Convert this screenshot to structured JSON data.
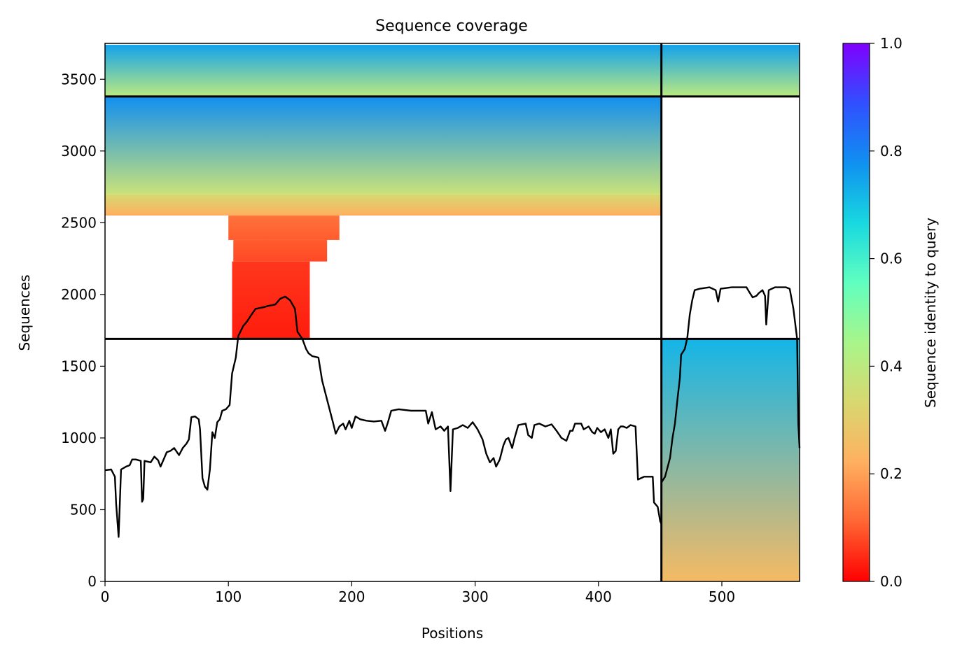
{
  "chart_data": {
    "type": "heatmap",
    "title": "Sequence coverage",
    "xlabel": "Positions",
    "ylabel": "Sequences",
    "xlim": [
      0,
      563
    ],
    "ylim": [
      0,
      3750
    ],
    "x_ticks": [
      {
        "value": 0,
        "label": "0"
      },
      {
        "value": 100,
        "label": "100"
      },
      {
        "value": 200,
        "label": "200"
      },
      {
        "value": 300,
        "label": "300"
      },
      {
        "value": 400,
        "label": "400"
      },
      {
        "value": 500,
        "label": "500"
      }
    ],
    "y_ticks": [
      {
        "value": 0,
        "label": "0"
      },
      {
        "value": 500,
        "label": "500"
      },
      {
        "value": 1000,
        "label": "1000"
      },
      {
        "value": 1500,
        "label": "1500"
      },
      {
        "value": 2000,
        "label": "2000"
      },
      {
        "value": 2500,
        "label": "2500"
      },
      {
        "value": 3000,
        "label": "3000"
      },
      {
        "value": 3500,
        "label": "3500"
      }
    ],
    "colorbar": {
      "label": "Sequence identity to query",
      "range": [
        0,
        1
      ],
      "colormap": "rainbow_r",
      "ticks": [
        {
          "value": 0.0,
          "label": "0.0"
        },
        {
          "value": 0.2,
          "label": "0.2"
        },
        {
          "value": 0.4,
          "label": "0.4"
        },
        {
          "value": 0.6,
          "label": "0.6"
        },
        {
          "value": 0.8,
          "label": "0.8"
        },
        {
          "value": 1.0,
          "label": "1.0"
        }
      ],
      "stops": [
        "#ff0000",
        "#ff6633",
        "#ffb060",
        "#d8d870",
        "#a8f58a",
        "#60ffc0",
        "#18d8e0",
        "#1090f0",
        "#3050ff",
        "#8000ff"
      ]
    },
    "chain_boundary_x": 451,
    "block_boundaries_y": [
      1690,
      3380
    ],
    "blocks": [
      {
        "x": [
          0,
          451
        ],
        "y": [
          3380,
          3740
        ],
        "identity_top": 0.75,
        "identity_bottom": 0.4
      },
      {
        "x": [
          451,
          563
        ],
        "y": [
          3380,
          3740
        ],
        "identity_top": 0.75,
        "identity_bottom": 0.4
      },
      {
        "x": [
          0,
          451
        ],
        "y": [
          2700,
          3380
        ],
        "identity_top": 0.78,
        "identity_bottom": 0.37
      },
      {
        "x": [
          0,
          451
        ],
        "y": [
          2550,
          2700
        ],
        "identity_top": 0.34,
        "identity_bottom": 0.22
      },
      {
        "x": [
          100,
          190
        ],
        "y": [
          2380,
          2550
        ],
        "identity_top": 0.13,
        "identity_bottom": 0.1
      },
      {
        "x": [
          104,
          180
        ],
        "y": [
          2230,
          2380
        ],
        "identity_top": 0.1,
        "identity_bottom": 0.08
      },
      {
        "x": [
          103,
          166
        ],
        "y": [
          1690,
          2230
        ],
        "identity_top": 0.06,
        "identity_bottom": 0.03
      },
      {
        "x": [
          451,
          563
        ],
        "y": [
          0,
          1690
        ],
        "identity_top": 0.72,
        "identity_bottom": 0.25
      }
    ],
    "series": [
      {
        "type": "line",
        "color": "#000000",
        "points": [
          [
            0,
            775
          ],
          [
            5,
            780
          ],
          [
            8,
            730
          ],
          [
            9,
            540
          ],
          [
            11,
            310
          ],
          [
            13,
            780
          ],
          [
            17,
            800
          ],
          [
            20,
            810
          ],
          [
            22,
            850
          ],
          [
            25,
            850
          ],
          [
            29,
            840
          ],
          [
            30,
            555
          ],
          [
            31,
            575
          ],
          [
            32,
            840
          ],
          [
            37,
            830
          ],
          [
            40,
            870
          ],
          [
            43,
            845
          ],
          [
            45,
            800
          ],
          [
            48,
            860
          ],
          [
            50,
            900
          ],
          [
            53,
            910
          ],
          [
            56,
            930
          ],
          [
            60,
            880
          ],
          [
            63,
            930
          ],
          [
            66,
            960
          ],
          [
            68,
            990
          ],
          [
            70,
            1145
          ],
          [
            73,
            1150
          ],
          [
            76,
            1130
          ],
          [
            77,
            1060
          ],
          [
            79,
            720
          ],
          [
            81,
            660
          ],
          [
            83,
            640
          ],
          [
            85,
            780
          ],
          [
            87,
            1040
          ],
          [
            89,
            1000
          ],
          [
            91,
            1110
          ],
          [
            93,
            1130
          ],
          [
            95,
            1190
          ],
          [
            98,
            1200
          ],
          [
            101,
            1230
          ],
          [
            103,
            1450
          ],
          [
            106,
            1560
          ],
          [
            108,
            1710
          ],
          [
            112,
            1780
          ],
          [
            115,
            1810
          ],
          [
            118,
            1850
          ],
          [
            122,
            1900
          ],
          [
            128,
            1910
          ],
          [
            132,
            1920
          ],
          [
            138,
            1930
          ],
          [
            142,
            1970
          ],
          [
            146,
            1985
          ],
          [
            150,
            1960
          ],
          [
            154,
            1900
          ],
          [
            156,
            1740
          ],
          [
            160,
            1690
          ],
          [
            163,
            1620
          ],
          [
            165,
            1590
          ],
          [
            168,
            1570
          ],
          [
            173,
            1560
          ],
          [
            176,
            1400
          ],
          [
            179,
            1300
          ],
          [
            182,
            1200
          ],
          [
            185,
            1100
          ],
          [
            187,
            1030
          ],
          [
            190,
            1080
          ],
          [
            193,
            1100
          ],
          [
            195,
            1060
          ],
          [
            198,
            1120
          ],
          [
            200,
            1070
          ],
          [
            203,
            1150
          ],
          [
            207,
            1130
          ],
          [
            212,
            1120
          ],
          [
            218,
            1115
          ],
          [
            224,
            1120
          ],
          [
            227,
            1050
          ],
          [
            229,
            1100
          ],
          [
            232,
            1190
          ],
          [
            238,
            1200
          ],
          [
            248,
            1190
          ],
          [
            260,
            1190
          ],
          [
            262,
            1100
          ],
          [
            265,
            1180
          ],
          [
            268,
            1060
          ],
          [
            272,
            1080
          ],
          [
            275,
            1050
          ],
          [
            278,
            1080
          ],
          [
            280,
            630
          ],
          [
            282,
            1060
          ],
          [
            286,
            1070
          ],
          [
            290,
            1090
          ],
          [
            294,
            1070
          ],
          [
            298,
            1110
          ],
          [
            302,
            1060
          ],
          [
            306,
            990
          ],
          [
            309,
            890
          ],
          [
            312,
            830
          ],
          [
            315,
            860
          ],
          [
            317,
            800
          ],
          [
            320,
            850
          ],
          [
            323,
            950
          ],
          [
            325,
            990
          ],
          [
            327,
            1000
          ],
          [
            330,
            930
          ],
          [
            332,
            1000
          ],
          [
            335,
            1090
          ],
          [
            341,
            1100
          ],
          [
            343,
            1020
          ],
          [
            346,
            1000
          ],
          [
            348,
            1090
          ],
          [
            352,
            1100
          ],
          [
            357,
            1080
          ],
          [
            362,
            1095
          ],
          [
            366,
            1050
          ],
          [
            370,
            1000
          ],
          [
            374,
            980
          ],
          [
            377,
            1050
          ],
          [
            379,
            1050
          ],
          [
            381,
            1100
          ],
          [
            386,
            1100
          ],
          [
            388,
            1060
          ],
          [
            392,
            1080
          ],
          [
            395,
            1040
          ],
          [
            397,
            1030
          ],
          [
            399,
            1070
          ],
          [
            402,
            1040
          ],
          [
            405,
            1060
          ],
          [
            408,
            1000
          ],
          [
            410,
            1060
          ],
          [
            412,
            890
          ],
          [
            414,
            910
          ],
          [
            416,
            1060
          ],
          [
            418,
            1080
          ],
          [
            420,
            1080
          ],
          [
            423,
            1070
          ],
          [
            426,
            1090
          ],
          [
            430,
            1080
          ],
          [
            432,
            710
          ],
          [
            437,
            730
          ],
          [
            444,
            730
          ],
          [
            445,
            550
          ],
          [
            448,
            520
          ],
          [
            450,
            420
          ],
          [
            451,
            400
          ],
          [
            451,
            690
          ],
          [
            454,
            730
          ],
          [
            458,
            860
          ],
          [
            460,
            1000
          ],
          [
            462,
            1100
          ],
          [
            464,
            1270
          ],
          [
            466,
            1420
          ],
          [
            467,
            1580
          ],
          [
            470,
            1620
          ],
          [
            472,
            1700
          ],
          [
            474,
            1860
          ],
          [
            476,
            1960
          ],
          [
            478,
            2030
          ],
          [
            482,
            2040
          ],
          [
            490,
            2050
          ],
          [
            495,
            2030
          ],
          [
            497,
            1950
          ],
          [
            499,
            2040
          ],
          [
            508,
            2050
          ],
          [
            520,
            2050
          ],
          [
            522,
            2020
          ],
          [
            525,
            1980
          ],
          [
            528,
            1990
          ],
          [
            530,
            2010
          ],
          [
            533,
            2030
          ],
          [
            535,
            1990
          ],
          [
            536,
            1790
          ],
          [
            538,
            2030
          ],
          [
            543,
            2050
          ],
          [
            552,
            2050
          ],
          [
            555,
            2040
          ],
          [
            558,
            1900
          ],
          [
            561,
            1690
          ],
          [
            562,
            1100
          ],
          [
            563,
            930
          ]
        ]
      }
    ]
  }
}
